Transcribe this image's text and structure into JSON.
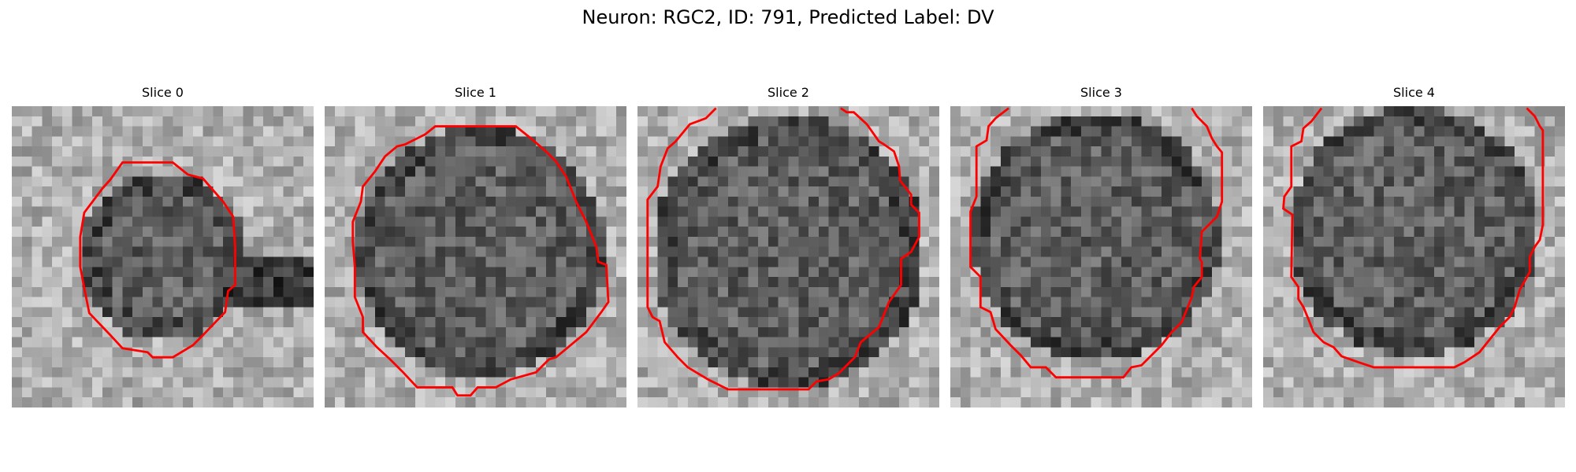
{
  "figure": {
    "title": "Neuron: RGC2, ID: 791, Predicted Label: DV"
  },
  "panels": [
    {
      "title": "Slice 0"
    },
    {
      "title": "Slice 1"
    },
    {
      "title": "Slice 2"
    },
    {
      "title": "Slice 3"
    },
    {
      "title": "Slice 4"
    }
  ],
  "colors": {
    "contour": "#ff0000",
    "background": "#ffffff"
  }
}
